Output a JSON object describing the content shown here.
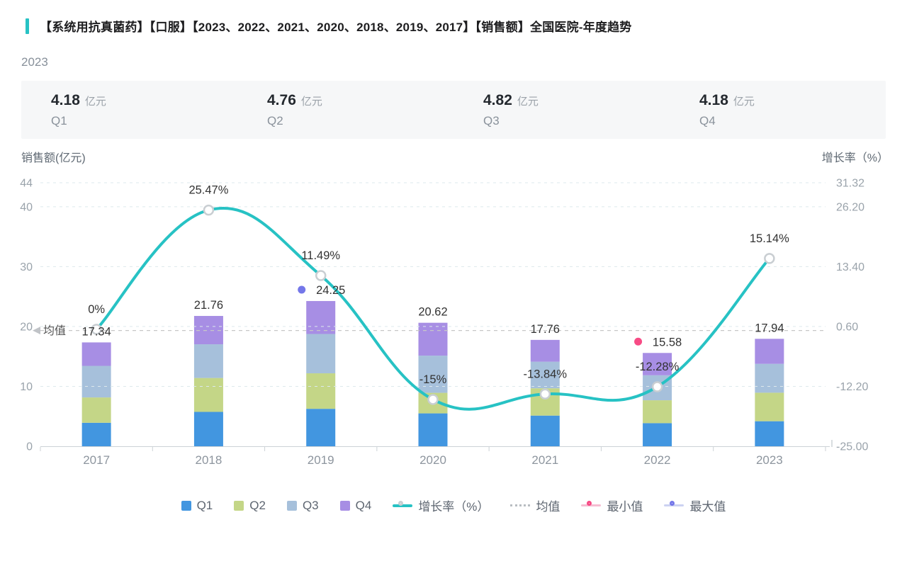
{
  "header": {
    "accent_color": "#27c2c4",
    "title": "【系统用抗真菌药】【口服】【2023、2022、2021、2020、2018、2019、2017】【销售额】全国医院-年度趋势",
    "year_label": "2023"
  },
  "summary": {
    "cards": [
      {
        "value": "4.18",
        "unit": "亿元",
        "label": "Q1"
      },
      {
        "value": "4.76",
        "unit": "亿元",
        "label": "Q2"
      },
      {
        "value": "4.82",
        "unit": "亿元",
        "label": "Q3"
      },
      {
        "value": "4.18",
        "unit": "亿元",
        "label": "Q4"
      }
    ]
  },
  "chart_data": {
    "type": "bar+line",
    "title": "销售额 年度趋势 2017-2023",
    "categories": [
      "2017",
      "2018",
      "2019",
      "2020",
      "2021",
      "2022",
      "2023"
    ],
    "left_axis": {
      "title": "销售额(亿元)",
      "ticks": [
        44,
        40,
        30,
        20,
        10,
        0
      ],
      "min": 0,
      "max": 44
    },
    "right_axis": {
      "title": "增长率（%）",
      "ticks": [
        31.32,
        26.2,
        13.4,
        0.6,
        -12.2,
        -25.0
      ],
      "min": -25.0,
      "max": 31.32
    },
    "series": [
      {
        "name": "Q1",
        "type": "bar",
        "stack": true,
        "color": "#4296e0",
        "values": [
          3.92,
          5.74,
          6.25,
          5.49,
          5.12,
          3.86,
          4.18
        ]
      },
      {
        "name": "Q2",
        "type": "bar",
        "stack": true,
        "color": "#c4d687",
        "values": [
          4.23,
          5.66,
          5.93,
          3.43,
          4.56,
          3.82,
          4.76
        ]
      },
      {
        "name": "Q3",
        "type": "bar",
        "stack": true,
        "color": "#a6c0db",
        "values": [
          5.27,
          5.63,
          6.57,
          6.21,
          4.44,
          4.17,
          4.82
        ]
      },
      {
        "name": "Q4",
        "type": "bar",
        "stack": true,
        "color": "#a78ee4",
        "values": [
          3.92,
          4.73,
          5.5,
          5.49,
          3.64,
          3.73,
          4.18
        ]
      },
      {
        "name": "增长率（%）",
        "type": "line",
        "color": "#27c2c4",
        "values": [
          0,
          25.47,
          11.49,
          -15,
          -13.84,
          -12.28,
          15.14
        ],
        "labels": [
          "0%",
          "25.47%",
          "11.49%",
          "-15%",
          "-13.84%",
          "-12.28%",
          "15.14%"
        ]
      }
    ],
    "totals": [
      17.34,
      21.76,
      24.25,
      20.62,
      17.76,
      15.58,
      17.94
    ],
    "total_labels": [
      "17.34",
      "21.76",
      "24.25",
      "20.62",
      "17.76",
      "15.58",
      "17.94"
    ],
    "mean": {
      "label": "均值",
      "value": 19.32
    },
    "max_point": {
      "category": "2019",
      "label": "24.25",
      "color": "#7477e9"
    },
    "min_point": {
      "category": "2022",
      "label": "15.58",
      "color": "#f74b85"
    },
    "grid": true,
    "colors": {
      "gridline": "#dde9ec",
      "mean_line": "#c7c7c7",
      "axis_line": "#ccd2d6",
      "tick_text": "#9aa3ab",
      "label_text": "#323232",
      "year_text": "#8d959e",
      "marker_ring": "#c9ced2"
    }
  },
  "legend": {
    "items": [
      {
        "label": "Q1",
        "type": "square",
        "color": "#4296e0"
      },
      {
        "label": "Q2",
        "type": "square",
        "color": "#c4d687"
      },
      {
        "label": "Q3",
        "type": "square",
        "color": "#a6c0db"
      },
      {
        "label": "Q4",
        "type": "square",
        "color": "#a78ee4"
      },
      {
        "label": "增长率（%）",
        "type": "line-marker",
        "color": "#27c2c4",
        "ring": "#c9ced2"
      },
      {
        "label": "均值",
        "type": "dotted",
        "color": "#b9bdc2"
      },
      {
        "label": "最小值",
        "type": "ring",
        "color": "#f74b85",
        "line": "#f6bcd1"
      },
      {
        "label": "最大值",
        "type": "ring",
        "color": "#7477e9",
        "line": "#ccd2f1"
      }
    ]
  }
}
